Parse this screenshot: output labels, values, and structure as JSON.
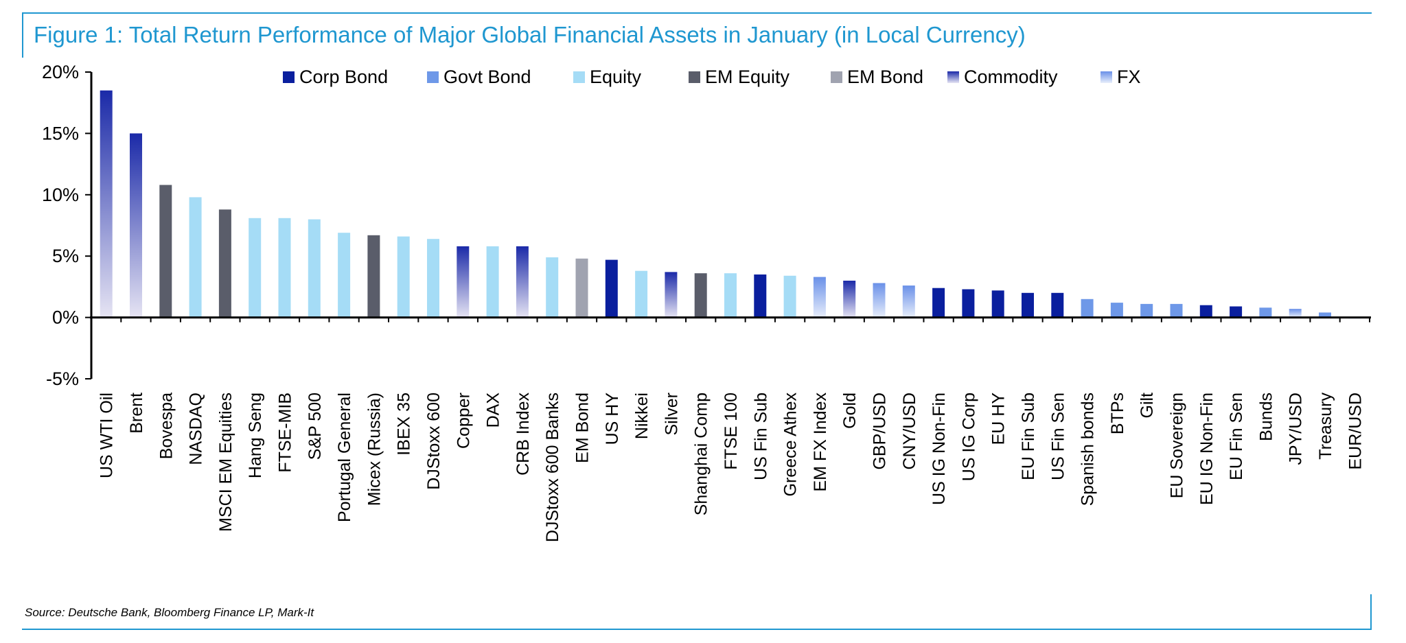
{
  "title": "Figure 1: Total Return Performance of Major Global Financial Assets in January (in Local Currency)",
  "source": "Source: Deutsche Bank, Bloomberg Finance LP, Mark-It",
  "colors": {
    "frame": "#1f97d0",
    "Corp Bond": "#0a1f9e",
    "Govt Bond": "#6e98e8",
    "Equity": "#a5dcf6",
    "EM Equity": "#5a5d6a",
    "EM Bond": "#a0a3b0",
    "commodity_top": "#1b2aa8",
    "commodity_bottom": "#e6e4f3",
    "fx_top": "#6a90e8",
    "fx_bottom": "#e8eefb"
  },
  "chart_data": {
    "type": "bar",
    "title": "Figure 1: Total Return Performance of Major Global Financial Assets in January (in Local Currency)",
    "xlabel": "",
    "ylabel": "",
    "ylim": [
      -5,
      20
    ],
    "yticks": [
      -5,
      0,
      5,
      10,
      15,
      20
    ],
    "ytick_labels": [
      "-5%",
      "0%",
      "5%",
      "10%",
      "15%",
      "20%"
    ],
    "grid": false,
    "legend_position": "top",
    "legend": [
      "Corp Bond",
      "Govt Bond",
      "Equity",
      "EM Equity",
      "EM Bond",
      "Commodity",
      "FX"
    ],
    "categories": [
      "US WTI Oil",
      "Brent",
      "Bovespa",
      "NASDAQ",
      "MSCI EM Equities",
      "Hang Seng",
      "FTSE-MIB",
      "S&P 500",
      "Portugal General",
      "Micex (Russia)",
      "IBEX 35",
      "DJStoxx 600",
      "Copper",
      "DAX",
      "CRB Index",
      "DJStoxx 600 Banks",
      "EM Bond",
      "US HY",
      "Nikkei",
      "Silver",
      "Shanghai Comp",
      "FTSE 100",
      "US Fin Sub",
      "Greece Athex",
      "EM FX Index",
      "Gold",
      "GBP/USD",
      "CNY/USD",
      "US IG Non-Fin",
      "US IG Corp",
      "EU HY",
      "EU Fin Sub",
      "US Fin Sen",
      "Spanish bonds",
      "BTPs",
      "Gilt",
      "EU Sovereign",
      "EU IG Non-Fin",
      "EU Fin Sen",
      "Bunds",
      "JPY/USD",
      "Treasury",
      "EUR/USD"
    ],
    "values": [
      18.5,
      15.0,
      10.8,
      9.8,
      8.8,
      8.1,
      8.1,
      8.0,
      6.9,
      6.7,
      6.6,
      6.4,
      5.8,
      5.8,
      5.8,
      4.9,
      4.8,
      4.7,
      3.8,
      3.7,
      3.6,
      3.6,
      3.5,
      3.4,
      3.3,
      3.0,
      2.8,
      2.6,
      2.4,
      2.3,
      2.2,
      2.0,
      2.0,
      1.5,
      1.2,
      1.1,
      1.1,
      1.0,
      0.9,
      0.8,
      0.7,
      0.4,
      -0.1
    ],
    "asset_class": [
      "Commodity",
      "Commodity",
      "EM Equity",
      "Equity",
      "EM Equity",
      "Equity",
      "Equity",
      "Equity",
      "Equity",
      "EM Equity",
      "Equity",
      "Equity",
      "Commodity",
      "Equity",
      "Commodity",
      "Equity",
      "EM Bond",
      "Corp Bond",
      "Equity",
      "Commodity",
      "EM Equity",
      "Equity",
      "Corp Bond",
      "Equity",
      "FX",
      "Commodity",
      "FX",
      "FX",
      "Corp Bond",
      "Corp Bond",
      "Corp Bond",
      "Corp Bond",
      "Corp Bond",
      "Govt Bond",
      "Govt Bond",
      "Govt Bond",
      "Govt Bond",
      "Corp Bond",
      "Corp Bond",
      "Govt Bond",
      "FX",
      "Govt Bond",
      "FX"
    ]
  }
}
